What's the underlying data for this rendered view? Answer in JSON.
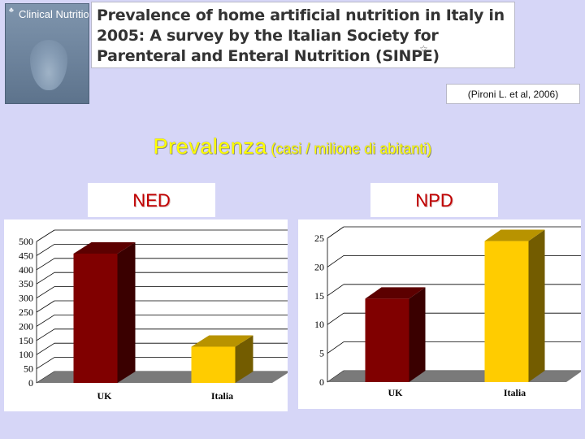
{
  "cover": {
    "journal_name": "Clinical Nutrition",
    "subtitle": "",
    "footer": ""
  },
  "article_title": "Prevalence of home artificial nutrition in Italy in 2005: A survey by the Italian Society for Parenteral and Enteral Nutrition (SINPE)",
  "citation": "(Pironi L. et al, 2006)",
  "headline": {
    "main": "Prevalenza",
    "sub": "(casi / milione di abitanti)"
  },
  "labels": {
    "ned": "NED",
    "npd": "NPD"
  },
  "colors": {
    "background": "#d6d6f7",
    "uk_bar": "#800000",
    "italia_bar": "#ffcc00",
    "headline": "#ffff00",
    "label_text": "#c00000"
  },
  "chart_data": [
    {
      "type": "bar",
      "title": "",
      "categories": [
        "UK",
        "Italia"
      ],
      "values": [
        457,
        128
      ],
      "yticks": [
        "0",
        "50",
        "100",
        "150",
        "200",
        "250",
        "300",
        "350",
        "400",
        "450",
        "500"
      ],
      "ylim": [
        0,
        500
      ],
      "xlabel": "",
      "ylabel": "",
      "grid": true,
      "style": "3d"
    },
    {
      "type": "bar",
      "title": "",
      "categories": [
        "UK",
        "Italia"
      ],
      "values": [
        14.5,
        24.5
      ],
      "yticks": [
        "0",
        "5",
        "10",
        "15",
        "20",
        "25"
      ],
      "ylim": [
        0,
        25
      ],
      "xlabel": "",
      "ylabel": "",
      "grid": true,
      "style": "3d"
    }
  ]
}
